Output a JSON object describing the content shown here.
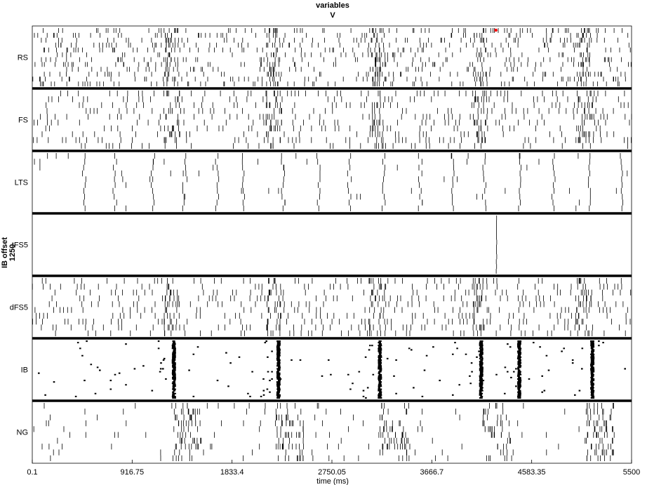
{
  "chart_data": {
    "type": "scatter",
    "title": "variables",
    "subtitle": "V",
    "xlabel": "time (ms)",
    "ylabel_line1": "IB offset",
    "ylabel_line2": "1250",
    "xlim": [
      0.1,
      5500
    ],
    "xticks": [
      "0.1",
      "916.75",
      "1833.4",
      "2750.05",
      "3666.7",
      "4583.35",
      "5500"
    ],
    "xtick_values": [
      0.1,
      916.75,
      1833.4,
      2750.05,
      3666.7,
      4583.35,
      5500
    ],
    "grid": false,
    "colors": {
      "spike": "#000000",
      "highlight": "#ff0000",
      "divider": "#000000"
    },
    "highlight_event": {
      "panel": "RS",
      "time": 4255
    },
    "panels": [
      {
        "name": "RS",
        "rows": 12,
        "style": "sparse",
        "bursts": [
          1280,
          2220,
          3170,
          4110,
          5070
        ],
        "burst_width": 140,
        "background_rate": 0.01
      },
      {
        "name": "FS",
        "rows": 10,
        "style": "periodic",
        "bursts": [
          1280,
          2220,
          3170,
          4110,
          5070
        ],
        "burst_width": 150,
        "background_rate": 0.018
      },
      {
        "name": "LTS",
        "rows": 10,
        "style": "sparse-waves",
        "waves": [
          480,
          760,
          1110,
          1400,
          1700,
          1940,
          2300,
          2630,
          2910,
          3230,
          3560,
          3860,
          4150,
          4480,
          4780,
          5120,
          5400
        ],
        "background_rate": 0.0009
      },
      {
        "name": "tFS5",
        "rows": 12,
        "style": "single",
        "events": [
          4260
        ],
        "background_rate": 0.0
      },
      {
        "name": "dFS5",
        "rows": 10,
        "style": "periodic",
        "bursts": [
          1280,
          2220,
          3170,
          4110,
          5070
        ],
        "burst_width": 150,
        "background_rate": 0.02
      },
      {
        "name": "IB",
        "rows": 40,
        "style": "bursting",
        "bursts": [
          1300,
          2260,
          3190,
          4120,
          4470,
          5140
        ],
        "burst_width": 40,
        "background_rate": 0.0004
      },
      {
        "name": "NG",
        "rows": 10,
        "style": "trailing",
        "bursts": [
          1310,
          2250,
          3210,
          4150,
          5100
        ],
        "burst_width": 260,
        "background_rate": 0.002
      }
    ]
  }
}
